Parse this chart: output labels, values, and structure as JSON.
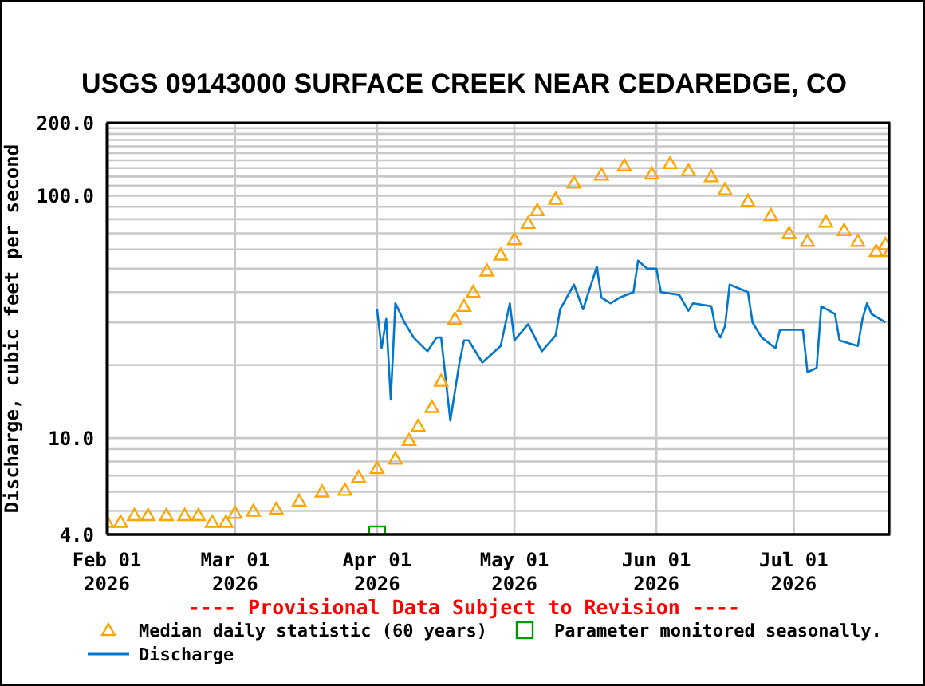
{
  "chart_data": {
    "type": "line",
    "title": "USGS 09143000 SURFACE CREEK NEAR CEDAREDGE, CO",
    "ylabel": "Discharge, cubic feet per second",
    "annotations": [
      "---- Provisional Data Subject to Revision ----"
    ],
    "xlim": [
      "2026-02-01",
      "2026-07-22"
    ],
    "xticks": [
      {
        "value": "2026-02-01",
        "label": "Feb 01\n2026"
      },
      {
        "value": "2026-03-01",
        "label": "Mar 01\n2026"
      },
      {
        "value": "2026-04-01",
        "label": "Apr 01\n2026"
      },
      {
        "value": "2026-05-01",
        "label": "May 01\n2026"
      },
      {
        "value": "2026-06-01",
        "label": "Jun 01\n2026"
      },
      {
        "value": "2026-07-01",
        "label": "Jul 01\n2026"
      }
    ],
    "ylim": [
      4,
      200
    ],
    "log": "y",
    "yticks": [
      {
        "value": 4,
        "label": "4.0"
      },
      {
        "value": 5,
        "label": null
      },
      {
        "value": 6,
        "label": null
      },
      {
        "value": 7,
        "label": null
      },
      {
        "value": 8,
        "label": null
      },
      {
        "value": 9,
        "label": null
      },
      {
        "value": 10,
        "label": "10.0"
      },
      {
        "value": 20,
        "label": null
      },
      {
        "value": 30,
        "label": null
      },
      {
        "value": 40,
        "label": null
      },
      {
        "value": 50,
        "label": null
      },
      {
        "value": 60,
        "label": null
      },
      {
        "value": 70,
        "label": null
      },
      {
        "value": 80,
        "label": null
      },
      {
        "value": 90,
        "label": null
      },
      {
        "value": 100,
        "label": "100.0"
      },
      {
        "value": 110,
        "label": null
      },
      {
        "value": 120,
        "label": null
      },
      {
        "value": 130,
        "label": null
      },
      {
        "value": 140,
        "label": null
      },
      {
        "value": 150,
        "label": null
      },
      {
        "value": 160,
        "label": null
      },
      {
        "value": 170,
        "label": null
      },
      {
        "value": 180,
        "label": null
      },
      {
        "value": 190,
        "label": null
      },
      {
        "value": 200,
        "label": "200.0"
      }
    ],
    "grid": true,
    "legend": "bottom",
    "series": [
      {
        "name": "Median daily statistic (60 years)",
        "type": "scatter",
        "marker": "triangle",
        "color": "#ffa500",
        "x": [
          "2026-02-01",
          "2026-02-04",
          "2026-02-07",
          "2026-02-10",
          "2026-02-14",
          "2026-02-18",
          "2026-02-21",
          "2026-02-24",
          "2026-02-27",
          "2026-03-01",
          "2026-03-05",
          "2026-03-10",
          "2026-03-15",
          "2026-03-20",
          "2026-03-25",
          "2026-03-28",
          "2026-04-01",
          "2026-04-05",
          "2026-04-08",
          "2026-04-10",
          "2026-04-13",
          "2026-04-15",
          "2026-04-18",
          "2026-04-20",
          "2026-04-22",
          "2026-04-25",
          "2026-04-28",
          "2026-05-01",
          "2026-05-04",
          "2026-05-06",
          "2026-05-10",
          "2026-05-14",
          "2026-05-20",
          "2026-05-25",
          "2026-05-31",
          "2026-06-04",
          "2026-06-08",
          "2026-06-13",
          "2026-06-16",
          "2026-06-21",
          "2026-06-26",
          "2026-06-30",
          "2026-07-04",
          "2026-07-08",
          "2026-07-12",
          "2026-07-15",
          "2026-07-19",
          "2026-07-21",
          "2026-07-22"
        ],
        "values": [
          4.5,
          4.5,
          4.8,
          4.8,
          4.8,
          4.8,
          4.8,
          4.5,
          4.5,
          4.9,
          5.0,
          5.1,
          5.5,
          6.0,
          6.1,
          6.9,
          7.5,
          8.2,
          9.8,
          11.2,
          13.4,
          17.2,
          31,
          35,
          40,
          49,
          57,
          66,
          77,
          87,
          97,
          113,
          122,
          133,
          123,
          136,
          127,
          120,
          106,
          95,
          83,
          70,
          65,
          78,
          72,
          65,
          59,
          63,
          59
        ]
      },
      {
        "name": "Parameter monitored seasonally.",
        "type": "scatter",
        "marker": "square",
        "color": "#009900",
        "x": [
          "2026-04-01"
        ],
        "values": [
          4
        ]
      },
      {
        "name": "Discharge",
        "marker": "none",
        "color": "#0077cc",
        "x": [
          "2026-04-01",
          "2026-04-02",
          "2026-04-03",
          "2026-04-04",
          "2026-04-05",
          "2026-04-07",
          "2026-04-09",
          "2026-04-12",
          "2026-04-14",
          "2026-04-15",
          "2026-04-17",
          "2026-04-19",
          "2026-04-20",
          "2026-04-21",
          "2026-04-24",
          "2026-04-28",
          "2026-04-30",
          "2026-05-01",
          "2026-05-04",
          "2026-05-07",
          "2026-05-10",
          "2026-05-11",
          "2026-05-14",
          "2026-05-16",
          "2026-05-19",
          "2026-05-20",
          "2026-05-22",
          "2026-05-24",
          "2026-05-27",
          "2026-05-28",
          "2026-05-30",
          "2026-06-01",
          "2026-06-02",
          "2026-06-06",
          "2026-06-08",
          "2026-06-09",
          "2026-06-13",
          "2026-06-14",
          "2026-06-15",
          "2026-06-16",
          "2026-06-17",
          "2026-06-21",
          "2026-06-22",
          "2026-06-24",
          "2026-06-27",
          "2026-06-28",
          "2026-07-03",
          "2026-07-04",
          "2026-07-06",
          "2026-07-07",
          "2026-07-10",
          "2026-07-11",
          "2026-07-15",
          "2026-07-16",
          "2026-07-17",
          "2026-07-18",
          "2026-07-21"
        ],
        "values": [
          34,
          23.5,
          31,
          14.4,
          36,
          30,
          26,
          22.8,
          26,
          26,
          11.8,
          20.5,
          25.3,
          25.3,
          20.5,
          24,
          36,
          25.3,
          29.5,
          22.8,
          26.5,
          34,
          43,
          34,
          51,
          38,
          36,
          38,
          40,
          54,
          50,
          50,
          40,
          39,
          33.5,
          36,
          35,
          28,
          26,
          29,
          43,
          40,
          30,
          26,
          23.5,
          28,
          28,
          18.7,
          19.5,
          35,
          32.5,
          25.3,
          24,
          31,
          36,
          32.5,
          30
        ]
      }
    ]
  }
}
